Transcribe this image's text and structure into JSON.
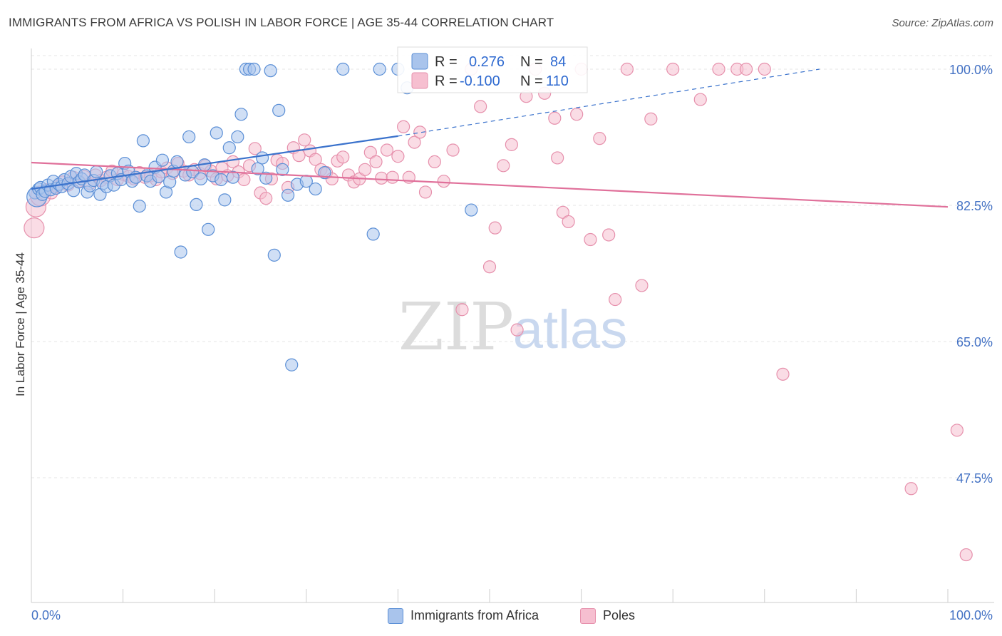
{
  "header": {
    "title": "IMMIGRANTS FROM AFRICA VS POLISH IN LABOR FORCE | AGE 35-44 CORRELATION CHART",
    "source": "Source: ZipAtlas.com"
  },
  "watermark": {
    "zip": "ZIP",
    "atlas": "atlas"
  },
  "legend_top": {
    "rows": [
      {
        "r_label": "R =",
        "r_value": "0.276",
        "n_label": "N =",
        "n_value": "84"
      },
      {
        "r_label": "R =",
        "r_value": "-0.100",
        "n_label": "N =",
        "n_value": "110"
      }
    ]
  },
  "legend_bottom": {
    "items": [
      {
        "label": "Immigrants from Africa"
      },
      {
        "label": "Poles"
      }
    ]
  },
  "colors": {
    "blue_fill": "#a9c4ec",
    "blue_stroke": "#5b8fd6",
    "blue_line": "#3a72cc",
    "pink_fill": "#f6bfd0",
    "pink_stroke": "#e690ac",
    "pink_line": "#e0709a",
    "tick_label": "#4472c4"
  },
  "chart_data": {
    "type": "scatter",
    "title": "IMMIGRANTS FROM AFRICA VS POLISH IN LABOR FORCE | AGE 35-44 CORRELATION CHART",
    "xlabel": "",
    "ylabel": "In Labor Force | Age 35-44",
    "xlim": [
      0,
      100
    ],
    "ylim": [
      31,
      102
    ],
    "x_tick_labels": [
      "0.0%",
      "100.0%"
    ],
    "y_ticks": [
      47.5,
      65.0,
      82.5,
      100.0
    ],
    "y_tick_labels": [
      "47.5%",
      "65.0%",
      "82.5%",
      "100.0%"
    ],
    "grid": true,
    "legend_placement": "top-center",
    "series": [
      {
        "name": "Immigrants from Africa",
        "r": 0.276,
        "n": 84,
        "trend": {
          "x": [
            0,
            40
          ],
          "y": [
            84.6,
            91.4
          ],
          "dashed_to": [
            86,
            100.0
          ]
        },
        "points": [
          [
            0.4,
            84.1
          ],
          [
            0.6,
            83.6
          ],
          [
            0.8,
            84.6
          ],
          [
            1.0,
            84.8
          ],
          [
            1.2,
            83.9
          ],
          [
            1.5,
            84.3
          ],
          [
            1.8,
            85.1
          ],
          [
            2.1,
            84.5
          ],
          [
            2.4,
            85.6
          ],
          [
            2.7,
            84.7
          ],
          [
            3.0,
            85.2
          ],
          [
            3.3,
            84.9
          ],
          [
            3.6,
            85.8
          ],
          [
            4.0,
            85.3
          ],
          [
            4.3,
            86.2
          ],
          [
            4.6,
            84.4
          ],
          [
            4.9,
            86.6
          ],
          [
            5.2,
            85.5
          ],
          [
            5.5,
            85.9
          ],
          [
            5.8,
            86.4
          ],
          [
            6.1,
            84.2
          ],
          [
            6.4,
            85.0
          ],
          [
            6.8,
            85.7
          ],
          [
            7.1,
            86.8
          ],
          [
            7.5,
            83.9
          ],
          [
            7.8,
            85.3
          ],
          [
            8.2,
            84.9
          ],
          [
            8.6,
            86.3
          ],
          [
            9.0,
            85.1
          ],
          [
            9.4,
            86.6
          ],
          [
            9.8,
            85.8
          ],
          [
            10.2,
            87.9
          ],
          [
            10.6,
            86.9
          ],
          [
            11.0,
            85.6
          ],
          [
            11.4,
            86.1
          ],
          [
            11.8,
            82.4
          ],
          [
            12.2,
            90.8
          ],
          [
            12.6,
            86.3
          ],
          [
            13.0,
            85.6
          ],
          [
            13.5,
            87.4
          ],
          [
            13.9,
            86.2
          ],
          [
            14.3,
            88.3
          ],
          [
            14.7,
            84.2
          ],
          [
            15.1,
            85.5
          ],
          [
            15.5,
            86.9
          ],
          [
            15.9,
            88.1
          ],
          [
            16.3,
            76.5
          ],
          [
            16.8,
            86.4
          ],
          [
            17.2,
            91.3
          ],
          [
            17.6,
            86.8
          ],
          [
            18.0,
            82.6
          ],
          [
            18.5,
            85.9
          ],
          [
            18.9,
            87.7
          ],
          [
            19.3,
            79.4
          ],
          [
            19.8,
            86.3
          ],
          [
            20.2,
            91.8
          ],
          [
            20.7,
            85.8
          ],
          [
            21.1,
            83.2
          ],
          [
            21.6,
            89.9
          ],
          [
            22.0,
            86.1
          ],
          [
            22.5,
            91.3
          ],
          [
            22.9,
            94.2
          ],
          [
            23.4,
            100.0
          ],
          [
            23.8,
            100.0
          ],
          [
            24.3,
            100.0
          ],
          [
            24.7,
            87.2
          ],
          [
            25.2,
            88.6
          ],
          [
            25.6,
            86.0
          ],
          [
            26.1,
            99.8
          ],
          [
            26.5,
            76.1
          ],
          [
            27.0,
            94.7
          ],
          [
            27.4,
            87.1
          ],
          [
            28.0,
            83.8
          ],
          [
            28.4,
            62.0
          ],
          [
            29.0,
            85.2
          ],
          [
            30.0,
            85.6
          ],
          [
            31.0,
            84.6
          ],
          [
            32.0,
            86.7
          ],
          [
            34.0,
            100.0
          ],
          [
            37.3,
            78.8
          ],
          [
            38.0,
            100.0
          ],
          [
            40.0,
            100.0
          ],
          [
            41.0,
            97.6
          ],
          [
            48.0,
            81.9
          ]
        ]
      },
      {
        "name": "Poles",
        "r": -0.1,
        "n": 110,
        "trend": {
          "x": [
            0,
            100
          ],
          "y": [
            88.0,
            82.3
          ]
        },
        "points": [
          [
            0.3,
            79.6
          ],
          [
            0.5,
            82.3
          ],
          [
            1.0,
            83.7
          ],
          [
            1.6,
            84.5
          ],
          [
            2.2,
            84.1
          ],
          [
            2.8,
            84.9
          ],
          [
            3.4,
            85.5
          ],
          [
            4.0,
            85.1
          ],
          [
            4.6,
            86.1
          ],
          [
            5.2,
            85.6
          ],
          [
            5.8,
            86.2
          ],
          [
            6.4,
            85.3
          ],
          [
            7.0,
            86.4
          ],
          [
            7.6,
            85.7
          ],
          [
            8.2,
            86.1
          ],
          [
            8.8,
            86.9
          ],
          [
            9.4,
            85.8
          ],
          [
            10.0,
            86.5
          ],
          [
            10.6,
            86.2
          ],
          [
            11.2,
            85.9
          ],
          [
            11.8,
            86.7
          ],
          [
            12.4,
            86.1
          ],
          [
            13.0,
            86.3
          ],
          [
            13.6,
            85.8
          ],
          [
            14.2,
            86.8
          ],
          [
            14.8,
            87.3
          ],
          [
            15.4,
            86.6
          ],
          [
            16.0,
            87.9
          ],
          [
            16.6,
            86.9
          ],
          [
            17.2,
            86.4
          ],
          [
            17.8,
            87.1
          ],
          [
            18.4,
            86.6
          ],
          [
            19.0,
            87.6
          ],
          [
            19.6,
            86.9
          ],
          [
            20.2,
            85.9
          ],
          [
            20.8,
            87.3
          ],
          [
            21.4,
            86.3
          ],
          [
            22.0,
            88.1
          ],
          [
            22.6,
            86.8
          ],
          [
            23.2,
            85.8
          ],
          [
            23.8,
            87.6
          ],
          [
            24.4,
            89.8
          ],
          [
            25.0,
            84.1
          ],
          [
            25.6,
            83.4
          ],
          [
            26.2,
            85.9
          ],
          [
            26.8,
            88.3
          ],
          [
            27.4,
            87.9
          ],
          [
            28.0,
            84.8
          ],
          [
            28.6,
            89.9
          ],
          [
            29.2,
            88.9
          ],
          [
            29.8,
            90.9
          ],
          [
            30.4,
            89.5
          ],
          [
            31.0,
            88.4
          ],
          [
            31.6,
            87.1
          ],
          [
            32.2,
            86.7
          ],
          [
            32.8,
            85.9
          ],
          [
            33.4,
            88.2
          ],
          [
            34.0,
            88.7
          ],
          [
            34.6,
            86.4
          ],
          [
            35.2,
            85.5
          ],
          [
            35.8,
            85.9
          ],
          [
            36.4,
            87.1
          ],
          [
            37.0,
            89.3
          ],
          [
            37.6,
            88.1
          ],
          [
            38.2,
            86.0
          ],
          [
            38.8,
            89.6
          ],
          [
            39.4,
            86.1
          ],
          [
            40.0,
            88.8
          ],
          [
            40.6,
            92.6
          ],
          [
            41.2,
            86.1
          ],
          [
            41.8,
            90.6
          ],
          [
            42.4,
            91.9
          ],
          [
            43.0,
            84.2
          ],
          [
            44.0,
            88.1
          ],
          [
            45.0,
            85.6
          ],
          [
            46.0,
            89.6
          ],
          [
            47.0,
            69.1
          ],
          [
            48.0,
            100.0
          ],
          [
            49.0,
            95.2
          ],
          [
            50.0,
            74.6
          ],
          [
            50.6,
            79.6
          ],
          [
            51.5,
            87.6
          ],
          [
            52.4,
            90.3
          ],
          [
            53.0,
            66.5
          ],
          [
            54.0,
            96.5
          ],
          [
            55.0,
            100.0
          ],
          [
            56.0,
            96.9
          ],
          [
            57.1,
            93.7
          ],
          [
            57.4,
            88.6
          ],
          [
            58.0,
            81.6
          ],
          [
            58.6,
            80.4
          ],
          [
            59.5,
            94.2
          ],
          [
            60.0,
            100.0
          ],
          [
            61.0,
            78.1
          ],
          [
            62.0,
            91.1
          ],
          [
            63.0,
            78.7
          ],
          [
            63.7,
            70.4
          ],
          [
            65.0,
            100.0
          ],
          [
            66.6,
            72.2
          ],
          [
            67.6,
            93.6
          ],
          [
            70.0,
            100.0
          ],
          [
            73.0,
            96.1
          ],
          [
            75.0,
            100.0
          ],
          [
            77.0,
            100.0
          ],
          [
            78.0,
            100.0
          ],
          [
            80.0,
            100.0
          ],
          [
            82.0,
            60.8
          ],
          [
            96.0,
            46.1
          ],
          [
            101.0,
            53.6
          ],
          [
            102.0,
            37.6
          ]
        ]
      }
    ]
  }
}
